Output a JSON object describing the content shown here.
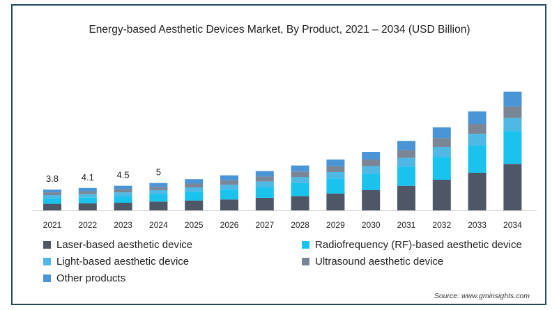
{
  "chart_data": {
    "type": "bar",
    "stacked": true,
    "title": "Energy-based Aesthetic Devices Market, By Product, 2021 – 2034 (USD Billion)",
    "xlabel": "",
    "ylabel": "",
    "categories": [
      "2021",
      "2022",
      "2023",
      "2024",
      "2025",
      "2026",
      "2027",
      "2028",
      "2029",
      "2030",
      "2031",
      "2032",
      "2033",
      "2034"
    ],
    "totals_labels": [
      "3.8",
      "4.1",
      "4.5",
      "5",
      "",
      "",
      "",
      "",
      "",
      "",
      "",
      "",
      "",
      ""
    ],
    "ylim": [
      0,
      27
    ],
    "grid": false,
    "legend_position": "bottom",
    "series": [
      {
        "name": "Laser-based aesthetic device",
        "color": "#4d5766",
        "values": [
          1.2,
          1.3,
          1.4,
          1.6,
          1.8,
          2.0,
          2.3,
          2.6,
          3.1,
          3.7,
          4.5,
          5.6,
          6.9,
          8.5
        ]
      },
      {
        "name": "Radiofrequency (RF)-based aesthetic device",
        "color": "#19c3ee",
        "values": [
          1.0,
          1.1,
          1.2,
          1.4,
          1.6,
          1.8,
          2.0,
          2.4,
          2.7,
          3.0,
          3.5,
          4.2,
          5.0,
          6.0
        ]
      },
      {
        "name": "Light-based aesthetic device",
        "color": "#4fb8e4",
        "values": [
          0.6,
          0.6,
          0.7,
          0.7,
          0.8,
          0.9,
          1.0,
          1.1,
          1.2,
          1.4,
          1.6,
          1.8,
          2.1,
          2.4
        ]
      },
      {
        "name": "Ultrasound aesthetic device",
        "color": "#7a8695",
        "values": [
          0.5,
          0.5,
          0.6,
          0.6,
          0.7,
          0.8,
          0.9,
          1.0,
          1.1,
          1.2,
          1.4,
          1.6,
          1.8,
          2.1
        ]
      },
      {
        "name": "Other products",
        "color": "#4a95d6",
        "values": [
          0.5,
          0.6,
          0.6,
          0.7,
          0.8,
          0.9,
          1.0,
          1.1,
          1.2,
          1.4,
          1.7,
          2.0,
          2.3,
          2.7
        ]
      }
    ],
    "source": "Source: www.gminsights.com"
  }
}
